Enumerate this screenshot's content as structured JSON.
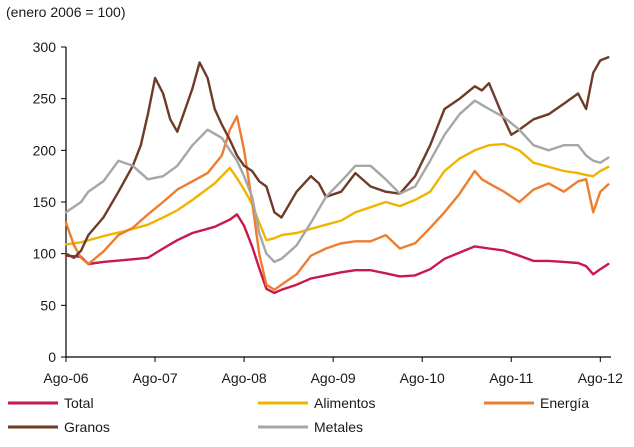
{
  "chart_data": {
    "type": "line",
    "subtitle": "(enero 2006 = 100)",
    "xlabel": "",
    "ylabel": "",
    "ylim": [
      0,
      300
    ],
    "yticks": [
      0,
      50,
      100,
      150,
      200,
      250,
      300
    ],
    "xlim": [
      2006.58,
      2012.7
    ],
    "xticks": [
      {
        "value": 2006.58,
        "label": "Ago-06"
      },
      {
        "value": 2007.58,
        "label": "Ago-07"
      },
      {
        "value": 2008.58,
        "label": "Ago-08"
      },
      {
        "value": 2009.58,
        "label": "Ago-09"
      },
      {
        "value": 2010.58,
        "label": "Ago-10"
      },
      {
        "value": 2011.58,
        "label": "Ago-11"
      },
      {
        "value": 2012.58,
        "label": "Ago-12"
      }
    ],
    "grid": false,
    "legend_position": "bottom",
    "series": [
      {
        "name": "Total",
        "color": "#c8194b",
        "x": [
          2006.58,
          2006.75,
          2006.83,
          2007.0,
          2007.25,
          2007.5,
          2007.67,
          2007.83,
          2008.0,
          2008.25,
          2008.42,
          2008.5,
          2008.58,
          2008.67,
          2008.75,
          2008.83,
          2008.92,
          2009.0,
          2009.17,
          2009.33,
          2009.5,
          2009.67,
          2009.83,
          2010.0,
          2010.17,
          2010.33,
          2010.5,
          2010.67,
          2010.83,
          2011.0,
          2011.17,
          2011.33,
          2011.5,
          2011.67,
          2011.83,
          2012.0,
          2012.17,
          2012.33,
          2012.42,
          2012.5,
          2012.58,
          2012.67
        ],
        "values": [
          98,
          97,
          90,
          92,
          94,
          96,
          105,
          113,
          120,
          126,
          133,
          138,
          127,
          107,
          86,
          66,
          62,
          65,
          70,
          76,
          79,
          82,
          84,
          84,
          81,
          78,
          79,
          85,
          95,
          101,
          107,
          105,
          103,
          98,
          93,
          93,
          92,
          91,
          88,
          80,
          85,
          90
        ]
      },
      {
        "name": "Alimentos",
        "color": "#f0b400",
        "x": [
          2006.58,
          2006.75,
          2007.0,
          2007.25,
          2007.5,
          2007.67,
          2007.83,
          2008.0,
          2008.25,
          2008.42,
          2008.5,
          2008.58,
          2008.67,
          2008.75,
          2008.83,
          2008.92,
          2009.0,
          2009.17,
          2009.33,
          2009.5,
          2009.67,
          2009.83,
          2010.0,
          2010.17,
          2010.33,
          2010.5,
          2010.67,
          2010.83,
          2011.0,
          2011.17,
          2011.33,
          2011.5,
          2011.67,
          2011.83,
          2012.0,
          2012.17,
          2012.33,
          2012.42,
          2012.5,
          2012.58,
          2012.67
        ],
        "values": [
          109,
          111,
          117,
          122,
          128,
          135,
          142,
          152,
          168,
          183,
          173,
          162,
          148,
          130,
          113,
          115,
          118,
          120,
          124,
          128,
          132,
          140,
          145,
          150,
          146,
          152,
          160,
          180,
          192,
          200,
          205,
          206,
          200,
          188,
          184,
          180,
          178,
          176,
          175,
          180,
          184
        ]
      },
      {
        "name": "Energía",
        "color": "#ee7d31",
        "x": [
          2006.58,
          2006.67,
          2006.75,
          2006.83,
          2007.0,
          2007.17,
          2007.33,
          2007.5,
          2007.67,
          2007.83,
          2008.0,
          2008.17,
          2008.33,
          2008.42,
          2008.5,
          2008.58,
          2008.67,
          2008.75,
          2008.83,
          2008.92,
          2009.0,
          2009.17,
          2009.33,
          2009.5,
          2009.67,
          2009.83,
          2010.0,
          2010.17,
          2010.33,
          2010.5,
          2010.67,
          2010.83,
          2011.0,
          2011.17,
          2011.25,
          2011.33,
          2011.5,
          2011.67,
          2011.83,
          2012.0,
          2012.17,
          2012.33,
          2012.42,
          2012.5,
          2012.58,
          2012.67
        ],
        "values": [
          130,
          108,
          96,
          90,
          102,
          118,
          125,
          138,
          150,
          162,
          170,
          178,
          195,
          220,
          233,
          200,
          150,
          100,
          70,
          65,
          70,
          80,
          98,
          105,
          110,
          112,
          112,
          118,
          105,
          110,
          125,
          140,
          158,
          180,
          172,
          168,
          160,
          150,
          162,
          168,
          160,
          170,
          172,
          140,
          160,
          167
        ]
      },
      {
        "name": "Granos",
        "color": "#6e3b28",
        "x": [
          2006.58,
          2006.67,
          2006.75,
          2006.83,
          2007.0,
          2007.17,
          2007.33,
          2007.42,
          2007.5,
          2007.58,
          2007.67,
          2007.75,
          2007.83,
          2007.92,
          2008.0,
          2008.08,
          2008.17,
          2008.25,
          2008.33,
          2008.42,
          2008.5,
          2008.58,
          2008.67,
          2008.75,
          2008.83,
          2008.92,
          2009.0,
          2009.17,
          2009.33,
          2009.42,
          2009.5,
          2009.67,
          2009.83,
          2010.0,
          2010.17,
          2010.33,
          2010.5,
          2010.67,
          2010.83,
          2011.0,
          2011.17,
          2011.25,
          2011.33,
          2011.5,
          2011.58,
          2011.67,
          2011.83,
          2012.0,
          2012.17,
          2012.33,
          2012.42,
          2012.5,
          2012.58,
          2012.67
        ],
        "values": [
          100,
          96,
          103,
          118,
          135,
          160,
          185,
          205,
          235,
          270,
          255,
          230,
          218,
          240,
          260,
          285,
          270,
          240,
          225,
          210,
          195,
          185,
          180,
          170,
          165,
          140,
          135,
          160,
          175,
          168,
          155,
          160,
          178,
          165,
          160,
          158,
          175,
          205,
          240,
          250,
          262,
          258,
          265,
          230,
          215,
          220,
          230,
          235,
          245,
          255,
          240,
          275,
          287,
          290
        ]
      },
      {
        "name": "Metales",
        "color": "#a6a6a6",
        "x": [
          2006.58,
          2006.75,
          2006.83,
          2007.0,
          2007.17,
          2007.33,
          2007.5,
          2007.67,
          2007.83,
          2008.0,
          2008.17,
          2008.33,
          2008.42,
          2008.5,
          2008.58,
          2008.67,
          2008.75,
          2008.83,
          2008.92,
          2009.0,
          2009.17,
          2009.33,
          2009.5,
          2009.67,
          2009.83,
          2010.0,
          2010.17,
          2010.33,
          2010.5,
          2010.67,
          2010.83,
          2011.0,
          2011.17,
          2011.33,
          2011.5,
          2011.67,
          2011.83,
          2012.0,
          2012.17,
          2012.33,
          2012.42,
          2012.5,
          2012.58,
          2012.67
        ],
        "values": [
          140,
          150,
          160,
          170,
          190,
          185,
          172,
          175,
          185,
          205,
          220,
          212,
          200,
          190,
          175,
          155,
          120,
          100,
          92,
          95,
          108,
          130,
          155,
          170,
          185,
          185,
          172,
          158,
          165,
          190,
          215,
          235,
          248,
          240,
          232,
          220,
          205,
          200,
          205,
          205,
          195,
          190,
          188,
          193
        ]
      }
    ]
  }
}
